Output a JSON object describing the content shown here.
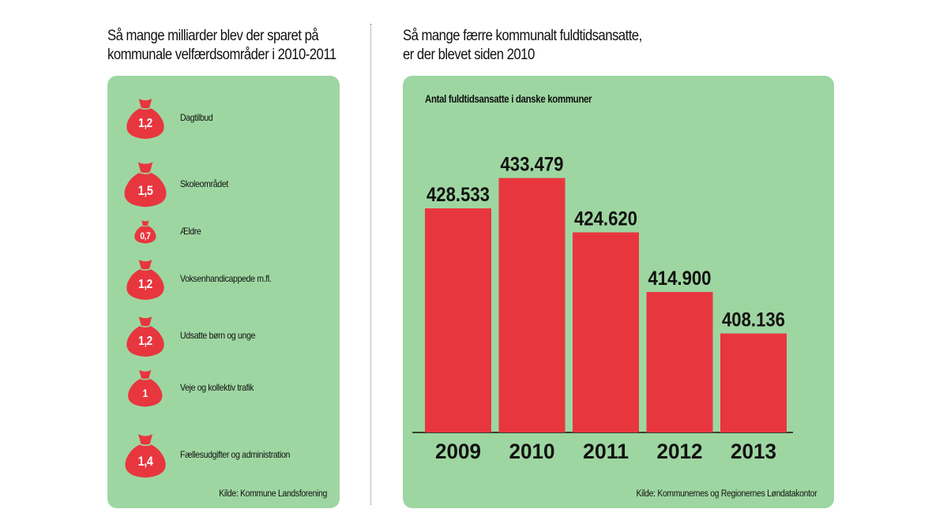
{
  "left": {
    "heading_line1": "Så mange milliarder blev der sparet på",
    "heading_line2": "kommunale velfærdsområder i 2010-2011",
    "items": [
      {
        "value": "1,2",
        "amount": 1.2,
        "label": "Dagtilbud"
      },
      {
        "value": "1,5",
        "amount": 1.5,
        "label": "Skoleområdet"
      },
      {
        "value": "0,7",
        "amount": 0.7,
        "label": "Ældre"
      },
      {
        "value": "1,2",
        "amount": 1.2,
        "label": "Voksenhandicappede m.fl."
      },
      {
        "value": "1,2",
        "amount": 1.2,
        "label": "Udsatte børn og unge"
      },
      {
        "value": "1",
        "amount": 1.0,
        "label": "Veje og kollektiv trafik"
      },
      {
        "value": "1,4",
        "amount": 1.4,
        "label": "Fællesudgifter og administration"
      }
    ],
    "source": "Kilde: Kommune Landsforening"
  },
  "right": {
    "heading_line1": "Så mange færre kommunalt fuldtidsansatte,",
    "heading_line2": "er der blevet siden 2010",
    "source": "Kilde:  Kommunernes og Regionernes Løndatakontor"
  },
  "colors": {
    "panel": "#9ed6a1",
    "bar": "#e8363f",
    "text": "#111111"
  },
  "icon": "money-bag-icon",
  "chart_data": {
    "type": "bar",
    "title": "Antal fuldtidsansatte i danske kommuner",
    "categories": [
      "2009",
      "2010",
      "2011",
      "2012",
      "2013"
    ],
    "values": [
      428533,
      433479,
      424620,
      414900,
      408136
    ],
    "value_labels": [
      "428.533",
      "433.479",
      "424.620",
      "414.900",
      "408.136"
    ],
    "xlabel": "",
    "ylabel": "",
    "ylim": [
      392000,
      436000
    ],
    "grid": false,
    "legend": "none"
  }
}
